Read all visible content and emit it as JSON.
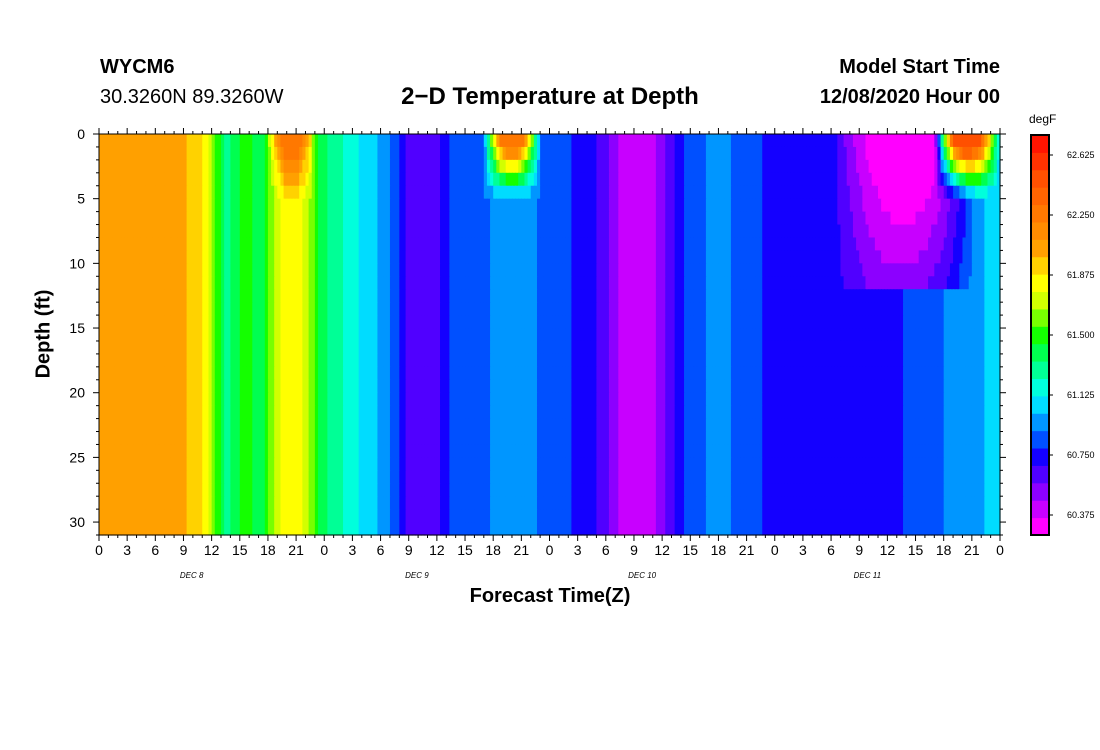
{
  "header": {
    "station": "WYCM6",
    "coords": "30.3260N 89.3260W",
    "title": "2−D Temperature at Depth",
    "model_start_label": "Model Start Time",
    "model_start_value": "12/08/2020 Hour 00"
  },
  "chart_data": {
    "type": "heatmap",
    "title": "2−D Temperature at Depth",
    "xlabel": "Forecast Time(Z)",
    "ylabel": "Depth (ft)",
    "units": "degF",
    "x_hours_range": [
      0,
      96
    ],
    "x_tick_labels": [
      "0",
      "3",
      "6",
      "9",
      "12",
      "15",
      "18",
      "21",
      "0",
      "3",
      "6",
      "9",
      "12",
      "15",
      "18",
      "21",
      "0",
      "3",
      "6",
      "9",
      "12",
      "15",
      "18",
      "21",
      "0",
      "3",
      "6",
      "9",
      "12",
      "15",
      "18",
      "21",
      "0"
    ],
    "day_labels": [
      "DEC 8",
      "DEC 9",
      "DEC 10",
      "DEC 11"
    ],
    "y_range": [
      0,
      31
    ],
    "y_ticks": [
      0,
      5,
      10,
      15,
      20,
      25,
      30
    ],
    "colorbar": {
      "min": 60.25,
      "max": 62.75,
      "tick_values": [
        60.375,
        60.75,
        61.125,
        61.5,
        61.875,
        62.25,
        62.625
      ],
      "tick_labels": [
        "60.375",
        "60.750",
        "61.125",
        "61.500",
        "61.875",
        "62.250",
        "62.625"
      ],
      "colors": [
        "#ff00ff",
        "#c800ff",
        "#8c00ff",
        "#5000ff",
        "#1400ff",
        "#0050ff",
        "#0096ff",
        "#00dcff",
        "#00ffdc",
        "#00ff96",
        "#00ff50",
        "#14ff00",
        "#78ff00",
        "#d2ff00",
        "#ffff00",
        "#ffd200",
        "#ffa000",
        "#ff8c00",
        "#ff7800",
        "#ff6400",
        "#ff5000",
        "#ff3200",
        "#ff1400"
      ]
    },
    "time_profile": [
      {
        "h": 0,
        "t": 62.0
      },
      {
        "h": 9,
        "t": 62.0
      },
      {
        "h": 11,
        "t": 61.9
      },
      {
        "h": 12,
        "t": 61.65
      },
      {
        "h": 13.5,
        "t": 61.3
      },
      {
        "h": 15,
        "t": 61.45
      },
      {
        "h": 16,
        "t": 61.55
      },
      {
        "h": 17,
        "t": 61.3
      },
      {
        "h": 18,
        "t": 61.55
      },
      {
        "h": 20,
        "t": 61.85
      },
      {
        "h": 21,
        "t": 61.85
      },
      {
        "h": 22.5,
        "t": 61.65
      },
      {
        "h": 23.5,
        "t": 61.4
      },
      {
        "h": 25,
        "t": 61.3
      },
      {
        "h": 27,
        "t": 61.15
      },
      {
        "h": 29,
        "t": 61.05
      },
      {
        "h": 31,
        "t": 60.9
      },
      {
        "h": 33,
        "t": 60.65
      },
      {
        "h": 36,
        "t": 60.65
      },
      {
        "h": 38,
        "t": 60.85
      },
      {
        "h": 40,
        "t": 60.85
      },
      {
        "h": 43,
        "t": 60.95
      },
      {
        "h": 47,
        "t": 60.9
      },
      {
        "h": 50,
        "t": 60.8
      },
      {
        "h": 53,
        "t": 60.7
      },
      {
        "h": 56,
        "t": 60.4
      },
      {
        "h": 59,
        "t": 60.45
      },
      {
        "h": 61,
        "t": 60.65
      },
      {
        "h": 63,
        "t": 60.85
      },
      {
        "h": 66,
        "t": 60.95
      },
      {
        "h": 69,
        "t": 60.85
      },
      {
        "h": 72,
        "t": 60.75
      },
      {
        "h": 75,
        "t": 60.75
      },
      {
        "h": 80,
        "t": 60.75
      },
      {
        "h": 84,
        "t": 60.75
      },
      {
        "h": 88,
        "t": 60.85
      },
      {
        "h": 92,
        "t": 60.95
      },
      {
        "h": 96,
        "t": 61.05
      }
    ],
    "warm_pockets": [
      {
        "h_start": 18,
        "h_end": 23,
        "max_depth_ft": 5,
        "peak_temp": 62.3
      },
      {
        "h_start": 41,
        "h_end": 47,
        "max_depth_ft": 5,
        "peak_temp": 62.3
      },
      {
        "h_start": 89,
        "h_end": 96,
        "max_depth_ft": 5,
        "peak_temp": 62.5
      }
    ],
    "cool_pocket": {
      "h_start": 78,
      "h_end": 96,
      "max_depth_ft": 12,
      "min_temp": 60.3
    }
  }
}
